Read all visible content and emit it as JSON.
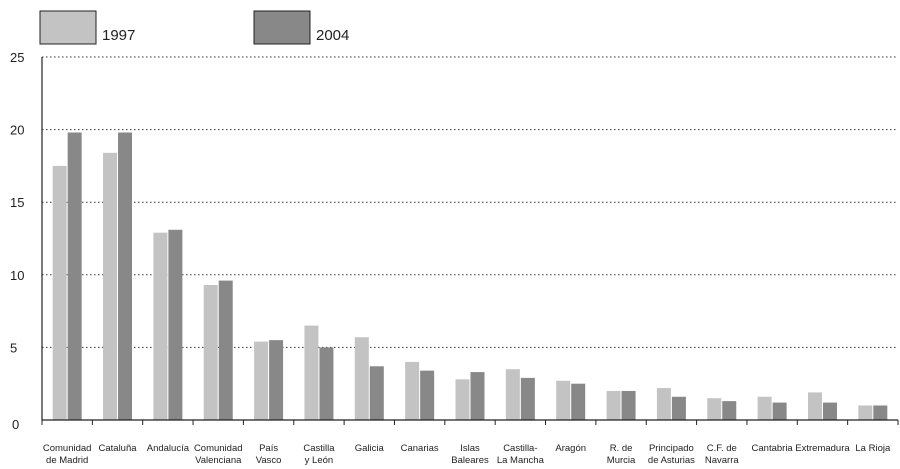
{
  "chart_data": {
    "type": "bar",
    "title": "",
    "xlabel": "",
    "ylabel": "",
    "ylim": [
      0,
      25
    ],
    "yticks": [
      0,
      5,
      10,
      15,
      20,
      25
    ],
    "grid": "horizontal dotted",
    "legend_position": "top-left",
    "categories": [
      [
        "Comunidad",
        "de Madrid"
      ],
      [
        "Cataluña"
      ],
      [
        "Andalucía"
      ],
      [
        "Comunidad",
        "Valenciana"
      ],
      [
        "País",
        "Vasco"
      ],
      [
        "Castilla",
        "y León"
      ],
      [
        "Galicia"
      ],
      [
        "Canarias"
      ],
      [
        "Islas",
        "Baleares"
      ],
      [
        "Castilla-",
        "La Mancha"
      ],
      [
        "Aragón"
      ],
      [
        "R. de",
        "Murcia"
      ],
      [
        "Principado",
        "de Asturias"
      ],
      [
        "C.F. de",
        "Navarra"
      ],
      [
        "Cantabria"
      ],
      [
        "Extremadura"
      ],
      [
        "La Rioja"
      ]
    ],
    "series": [
      {
        "name": "1997",
        "color": "#c3c3c3",
        "values": [
          17.5,
          18.4,
          12.9,
          9.3,
          5.4,
          6.5,
          5.7,
          4.0,
          2.8,
          3.5,
          2.7,
          2.0,
          2.2,
          1.5,
          1.6,
          1.9,
          1.0
        ]
      },
      {
        "name": "2004",
        "color": "#888888",
        "values": [
          19.8,
          19.8,
          13.1,
          9.6,
          5.5,
          5.0,
          3.7,
          3.4,
          3.3,
          2.9,
          2.5,
          2.0,
          1.6,
          1.3,
          1.2,
          1.2,
          1.0
        ]
      }
    ]
  }
}
